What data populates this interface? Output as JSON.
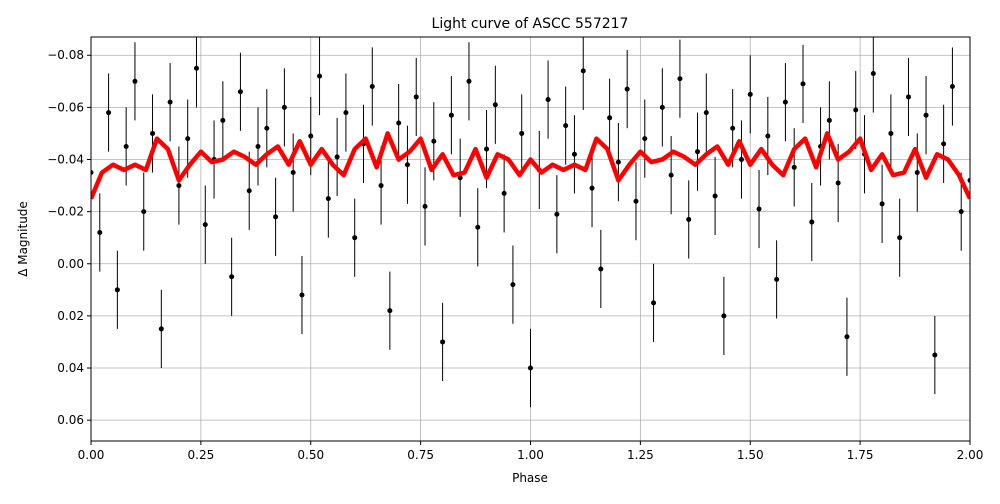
{
  "chart_data": {
    "type": "scatter",
    "title": "Light curve of ASCC 557217",
    "x_label": "Phase",
    "y_label": "Δ Magnitude",
    "xlim": [
      0,
      2
    ],
    "ylim": [
      0.068,
      -0.087
    ],
    "grid": true,
    "xticks": [
      {
        "value": 0,
        "label": "0.00"
      },
      {
        "value": 0.25,
        "label": "0.25"
      },
      {
        "value": 0.5,
        "label": "0.50"
      },
      {
        "value": 0.75,
        "label": "0.75"
      },
      {
        "value": 1,
        "label": "1.00"
      },
      {
        "value": 1.25,
        "label": "1.25"
      },
      {
        "value": 1.5,
        "label": "1.50"
      },
      {
        "value": 1.75,
        "label": "1.75"
      },
      {
        "value": 2,
        "label": "2.00"
      }
    ],
    "yticks": [
      {
        "value": -0.08,
        "label": "−0.08"
      },
      {
        "value": -0.06,
        "label": "−0.06"
      },
      {
        "value": -0.04,
        "label": "−0.04"
      },
      {
        "value": -0.02,
        "label": "−0.02"
      },
      {
        "value": 0,
        "label": "0.00"
      },
      {
        "value": 0.02,
        "label": "0.02"
      },
      {
        "value": 0.04,
        "label": "0.04"
      },
      {
        "value": 0.06,
        "label": "0.06"
      }
    ],
    "series": [
      {
        "type": "errorbar",
        "color": "#000000",
        "error": 0.015,
        "x": [
          0,
          0.02,
          0.04,
          0.06,
          0.08,
          0.1,
          0.12,
          0.14,
          0.16,
          0.18,
          0.2,
          0.22,
          0.24,
          0.26,
          0.28,
          0.3,
          0.32,
          0.34,
          0.36,
          0.38,
          0.4,
          0.42,
          0.44,
          0.46,
          0.48,
          0.5,
          0.52,
          0.54,
          0.56,
          0.58,
          0.6,
          0.62,
          0.64,
          0.66,
          0.68,
          0.7,
          0.72,
          0.74,
          0.76,
          0.78,
          0.8,
          0.82,
          0.84,
          0.86,
          0.88,
          0.9,
          0.92,
          0.94,
          0.96,
          0.98,
          1,
          1.02,
          1.04,
          1.06,
          1.08,
          1.1,
          1.12,
          1.14,
          1.16,
          1.18,
          1.2,
          1.22,
          1.24,
          1.26,
          1.28,
          1.3,
          1.32,
          1.34,
          1.36,
          1.38,
          1.4,
          1.42,
          1.44,
          1.46,
          1.48,
          1.5,
          1.52,
          1.54,
          1.56,
          1.58,
          1.6,
          1.62,
          1.64,
          1.66,
          1.68,
          1.7,
          1.72,
          1.74,
          1.76,
          1.78,
          1.8,
          1.82,
          1.84,
          1.86,
          1.88,
          1.9,
          1.92,
          1.94,
          1.96,
          1.98,
          2
        ],
        "values": [
          -0.035,
          -0.012,
          -0.058,
          0.01,
          -0.045,
          -0.07,
          -0.02,
          -0.05,
          0.025,
          -0.062,
          -0.03,
          -0.048,
          -0.075,
          -0.015,
          -0.04,
          -0.055,
          0.005,
          -0.066,
          -0.028,
          -0.045,
          -0.052,
          -0.018,
          -0.06,
          -0.035,
          0.012,
          -0.049,
          -0.072,
          -0.025,
          -0.041,
          -0.058,
          -0.01,
          -0.046,
          -0.068,
          -0.03,
          0.018,
          -0.054,
          -0.038,
          -0.064,
          -0.022,
          -0.047,
          0.03,
          -0.057,
          -0.033,
          -0.07,
          -0.014,
          -0.044,
          -0.061,
          -0.027,
          0.008,
          -0.05,
          0.04,
          -0.036,
          -0.063,
          -0.019,
          -0.053,
          -0.042,
          -0.074,
          -0.029,
          0.002,
          -0.056,
          -0.039,
          -0.067,
          -0.024,
          -0.048,
          0.015,
          -0.06,
          -0.034,
          -0.071,
          -0.017,
          -0.043,
          -0.058,
          -0.026,
          0.02,
          -0.052,
          -0.04,
          -0.065,
          -0.021,
          -0.049,
          0.006,
          -0.062,
          -0.037,
          -0.069,
          -0.016,
          -0.045,
          -0.055,
          -0.031,
          0.028,
          -0.059,
          -0.042,
          -0.073,
          -0.023,
          -0.05,
          -0.01,
          -0.064,
          -0.035,
          -0.057,
          0.035,
          -0.046,
          -0.068,
          -0.02,
          -0.032
        ]
      },
      {
        "type": "line",
        "color": "#ff0000",
        "x": [
          0,
          0.025,
          0.05,
          0.075,
          0.1,
          0.125,
          0.15,
          0.175,
          0.2,
          0.225,
          0.25,
          0.275,
          0.3,
          0.325,
          0.35,
          0.375,
          0.4,
          0.425,
          0.45,
          0.475,
          0.5,
          0.525,
          0.55,
          0.575,
          0.6,
          0.625,
          0.65,
          0.675,
          0.7,
          0.725,
          0.75,
          0.775,
          0.8,
          0.825,
          0.85,
          0.875,
          0.9,
          0.925,
          0.95,
          0.975,
          1,
          1.025,
          1.05,
          1.075,
          1.1,
          1.125,
          1.15,
          1.175,
          1.2,
          1.225,
          1.25,
          1.275,
          1.3,
          1.325,
          1.35,
          1.375,
          1.4,
          1.425,
          1.45,
          1.475,
          1.5,
          1.525,
          1.55,
          1.575,
          1.6,
          1.625,
          1.65,
          1.675,
          1.7,
          1.725,
          1.75,
          1.775,
          1.8,
          1.825,
          1.85,
          1.875,
          1.9,
          1.925,
          1.95,
          1.975,
          2
        ],
        "values": [
          -0.025,
          -0.035,
          -0.038,
          -0.036,
          -0.038,
          -0.036,
          -0.048,
          -0.044,
          -0.032,
          -0.038,
          -0.043,
          -0.039,
          -0.04,
          -0.043,
          -0.041,
          -0.038,
          -0.042,
          -0.045,
          -0.038,
          -0.047,
          -0.038,
          -0.044,
          -0.038,
          -0.034,
          -0.044,
          -0.048,
          -0.037,
          -0.05,
          -0.04,
          -0.043,
          -0.048,
          -0.036,
          -0.042,
          -0.034,
          -0.035,
          -0.044,
          -0.033,
          -0.042,
          -0.04,
          -0.034,
          -0.04,
          -0.035,
          -0.038,
          -0.036,
          -0.038,
          -0.036,
          -0.048,
          -0.044,
          -0.032,
          -0.038,
          -0.043,
          -0.039,
          -0.04,
          -0.043,
          -0.041,
          -0.038,
          -0.042,
          -0.045,
          -0.038,
          -0.047,
          -0.038,
          -0.044,
          -0.038,
          -0.034,
          -0.044,
          -0.048,
          -0.037,
          -0.05,
          -0.04,
          -0.043,
          -0.048,
          -0.036,
          -0.042,
          -0.034,
          -0.035,
          -0.044,
          -0.033,
          -0.042,
          -0.04,
          -0.034,
          -0.025
        ]
      }
    ]
  }
}
